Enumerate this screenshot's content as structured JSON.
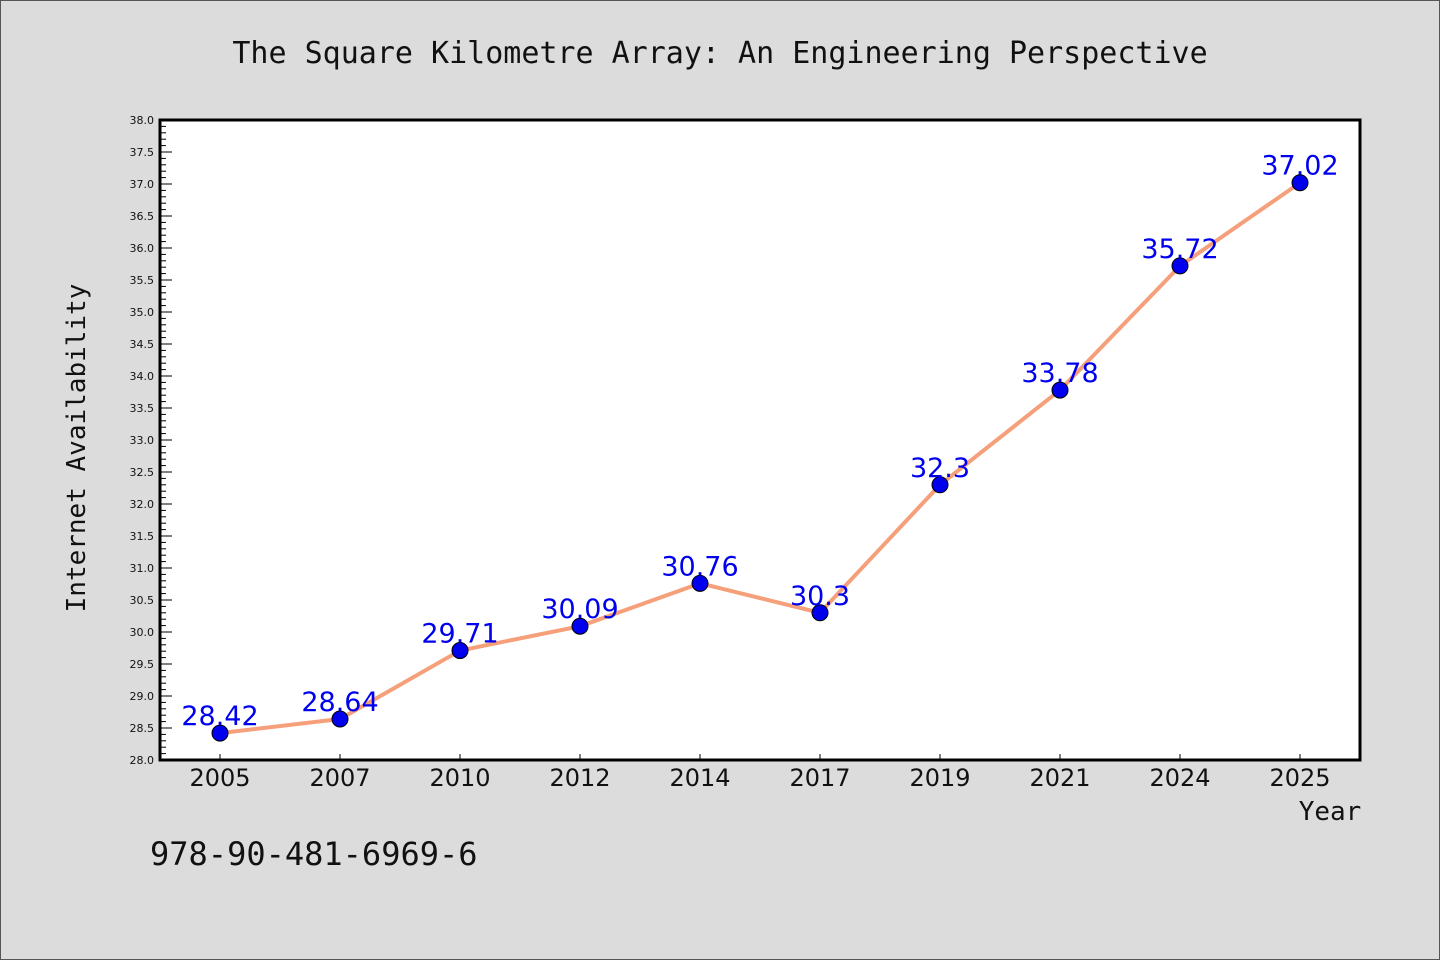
{
  "chart_data": {
    "type": "line",
    "title": "The Square Kilometre Array: An Engineering Perspective",
    "xlabel": "Year",
    "ylabel": "Internet Availability",
    "categories": [
      "2005",
      "2007",
      "2010",
      "2012",
      "2014",
      "2017",
      "2019",
      "2021",
      "2024",
      "2025"
    ],
    "series": [
      {
        "values": [
          28.42,
          28.64,
          29.71,
          30.09,
          30.76,
          30.3,
          32.3,
          33.78,
          35.72,
          37.02
        ],
        "labels": [
          "28.42",
          "28.64",
          "29.71",
          "30.09",
          "30.76",
          "30.3",
          "32.3",
          "33.78",
          "35.72",
          "37.02"
        ],
        "line_color": "#f5a07a",
        "marker_color": "#0000ee"
      }
    ],
    "ylim": [
      28.0,
      38.0
    ],
    "yticks": [
      "28.0",
      "28.5",
      "29.0",
      "29.5",
      "30.0",
      "30.5",
      "31.0",
      "31.5",
      "32.0",
      "32.5",
      "33.0",
      "33.5",
      "34.0",
      "34.5",
      "35.0",
      "35.5",
      "36.0",
      "36.5",
      "37.0",
      "37.5",
      "38.0"
    ],
    "grid": false,
    "legend": "none"
  },
  "footer": {
    "isbn": "978-90-481-6969-6"
  },
  "colors": {
    "background": "#dcdcdc",
    "plot_background": "#ffffff",
    "line": "#f5a07a",
    "marker": "#0000ee",
    "data_label": "#0000ee"
  }
}
